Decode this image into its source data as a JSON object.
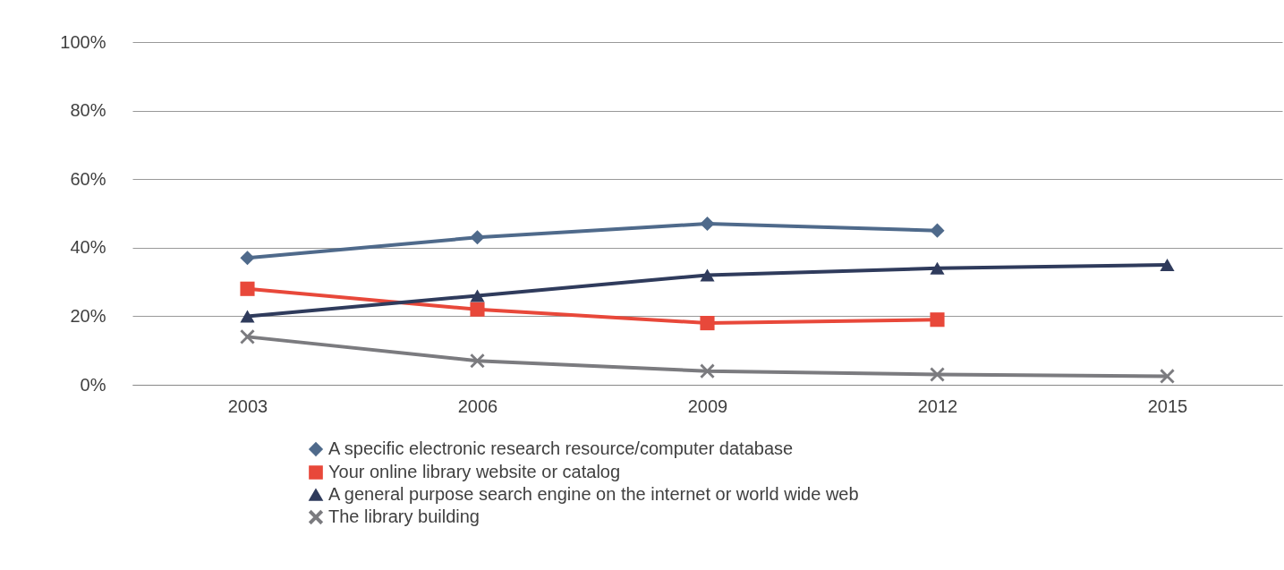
{
  "chart_data": {
    "type": "line",
    "categories": [
      "2003",
      "2006",
      "2009",
      "2012",
      "2015"
    ],
    "ylim": [
      0,
      100
    ],
    "yticks": [
      {
        "value": 0,
        "label": "0%"
      },
      {
        "value": 20,
        "label": "20%"
      },
      {
        "value": 40,
        "label": "40%"
      },
      {
        "value": 60,
        "label": "60%"
      },
      {
        "value": 80,
        "label": "80%"
      },
      {
        "value": 100,
        "label": "100%"
      }
    ],
    "grid": "y",
    "legend": "bottom",
    "series": [
      {
        "name": "A specific electronic research resource/computer database",
        "color": "#4f6a8b",
        "marker": "diamond",
        "values": [
          37,
          43,
          47,
          45,
          null
        ]
      },
      {
        "name": "Your online library website or catalog",
        "color": "#e8483a",
        "marker": "square",
        "values": [
          28,
          22,
          18,
          19,
          null
        ]
      },
      {
        "name": "A general purpose search engine on the internet or world wide web",
        "color": "#2f3b5c",
        "marker": "triangle",
        "values": [
          20,
          26,
          32,
          34,
          35
        ]
      },
      {
        "name": "The library building",
        "color": "#7b7b7f",
        "marker": "cross",
        "values": [
          14,
          7,
          4,
          3,
          2.5
        ]
      }
    ]
  }
}
